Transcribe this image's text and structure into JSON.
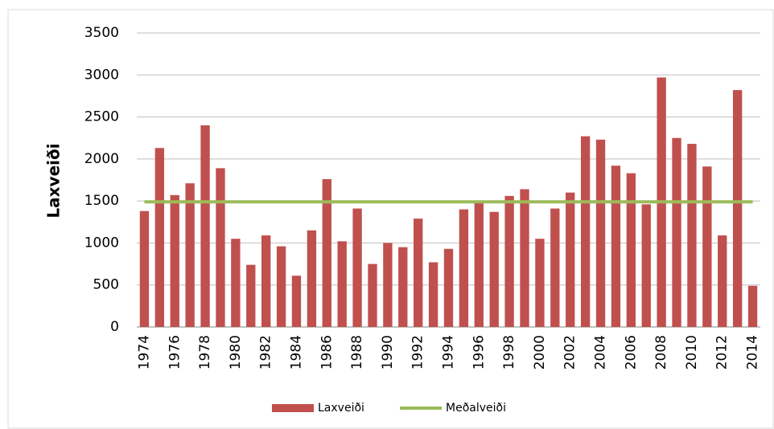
{
  "chart_data": {
    "type": "bar",
    "y_label": "Laxveiði",
    "categories": [
      "1974",
      null,
      "1976",
      null,
      "1978",
      null,
      "1980",
      null,
      "1982",
      null,
      "1984",
      null,
      "1986",
      null,
      "1988",
      null,
      "1990",
      null,
      "1992",
      null,
      "1994",
      null,
      "1996",
      null,
      "1998",
      null,
      "2000",
      null,
      "2002",
      null,
      "2004",
      null,
      "2006",
      null,
      "2008",
      null,
      "2010",
      null,
      "2012",
      null,
      "2014"
    ],
    "series": [
      {
        "name": "Laxveiði",
        "type": "bar",
        "color": "#c0504d",
        "values": [
          1380,
          2130,
          1570,
          1710,
          2400,
          1890,
          1050,
          740,
          1090,
          960,
          610,
          1150,
          1760,
          1020,
          1410,
          750,
          1000,
          950,
          1290,
          770,
          930,
          1400,
          1500,
          1370,
          1560,
          1640,
          1050,
          1410,
          1600,
          2270,
          2230,
          1920,
          1830,
          1460,
          2970,
          2250,
          2180,
          1910,
          1090,
          2820,
          490
        ]
      },
      {
        "name": "Meðalveiði",
        "type": "line",
        "color": "#9bbb59",
        "values": [
          1490,
          1490,
          1490,
          1490,
          1490,
          1490,
          1490,
          1490,
          1490,
          1490,
          1490,
          1490,
          1490,
          1490,
          1490,
          1490,
          1490,
          1490,
          1490,
          1490,
          1490,
          1490,
          1490,
          1490,
          1490,
          1490,
          1490,
          1490,
          1490,
          1490,
          1490,
          1490,
          1490,
          1490,
          1490,
          1490,
          1490,
          1490,
          1490,
          1490,
          1490
        ]
      }
    ],
    "ylim": [
      0,
      3500
    ],
    "yticks": [
      0,
      500,
      1000,
      1500,
      2000,
      2500,
      3000,
      3500
    ],
    "grid": true,
    "legend": "bottom"
  }
}
